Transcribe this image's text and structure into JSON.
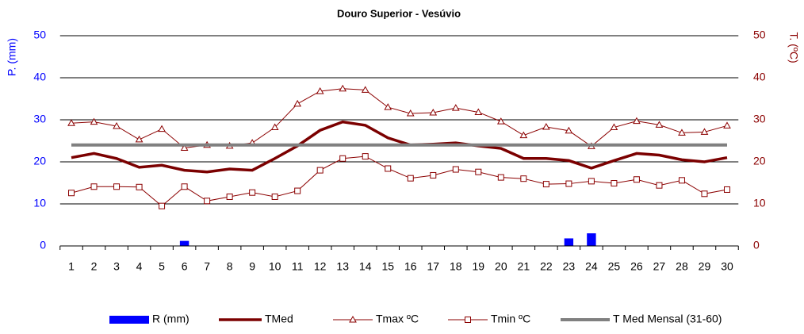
{
  "chart_data": {
    "type": "combo",
    "title": "Douro Superior - Vesúvio",
    "y_label": "P. (mm)",
    "y2_label": "T. (ºC)",
    "categories": [
      1,
      2,
      3,
      4,
      5,
      6,
      7,
      8,
      9,
      10,
      11,
      12,
      13,
      14,
      15,
      16,
      17,
      18,
      19,
      20,
      21,
      22,
      23,
      24,
      25,
      26,
      27,
      28,
      29,
      30
    ],
    "ylim": [
      0,
      50
    ],
    "yticks": [
      0,
      10,
      20,
      30,
      40,
      50
    ],
    "y2lim": [
      0,
      50
    ],
    "y2ticks": [
      0,
      10,
      20,
      30,
      40,
      50
    ],
    "grid": true,
    "legend": "bottom",
    "series": [
      {
        "name": "R (mm)",
        "type": "bar",
        "color": "#0000ff",
        "axis": "y",
        "values": [
          0,
          0,
          0,
          0,
          0,
          1.2,
          0,
          0,
          0,
          0,
          0,
          0,
          0,
          0,
          0,
          0,
          0,
          0,
          0,
          0,
          0,
          0,
          1.8,
          3.0,
          0,
          0,
          0,
          0,
          0,
          0
        ]
      },
      {
        "name": "TMed",
        "type": "line",
        "color": "#7b0000",
        "width": 3.5,
        "axis": "y2",
        "values": [
          21,
          22,
          20.8,
          18.7,
          19.2,
          18,
          17.6,
          18.3,
          18,
          20.8,
          23.8,
          27.5,
          29.5,
          28.7,
          25.7,
          24,
          24.2,
          24.5,
          23.8,
          23.2,
          20.8,
          20.8,
          20.3,
          18.5,
          20.3,
          22,
          21.6,
          20.5,
          20,
          21
        ]
      },
      {
        "name": "Tmax ºC",
        "type": "line",
        "color": "#8b0000",
        "width": 1,
        "marker": "triangle",
        "axis": "y2",
        "values": [
          29.2,
          29.5,
          28.5,
          25.3,
          27.8,
          23.3,
          24,
          23.8,
          24.5,
          28.2,
          33.8,
          36.8,
          37.4,
          37.1,
          33,
          31.5,
          31.7,
          32.8,
          31.8,
          29.6,
          26.3,
          28.3,
          27.4,
          23.7,
          28.2,
          29.7,
          28.8,
          26.9,
          27.1,
          28.6
        ]
      },
      {
        "name": "Tmin ºC",
        "type": "line",
        "color": "#8b0000",
        "width": 1,
        "marker": "square",
        "axis": "y2",
        "values": [
          12.6,
          14.1,
          14.1,
          14,
          9.5,
          14.1,
          10.7,
          11.7,
          12.7,
          11.7,
          13.1,
          18,
          20.8,
          21.3,
          18.4,
          16.1,
          16.8,
          18.2,
          17.6,
          16.3,
          16,
          14.7,
          14.8,
          15.4,
          14.9,
          15.8,
          14.4,
          15.6,
          12.4,
          13.4
        ]
      },
      {
        "name": "T Med Mensal (31-60)",
        "type": "line",
        "color": "#808080",
        "width": 4,
        "axis": "y2",
        "values": [
          24,
          24,
          24,
          24,
          24,
          24,
          24,
          24,
          24,
          24,
          24,
          24,
          24,
          24,
          24,
          24,
          24,
          24,
          24,
          24,
          24,
          24,
          24,
          24,
          24,
          24,
          24,
          24,
          24,
          24
        ]
      }
    ]
  }
}
